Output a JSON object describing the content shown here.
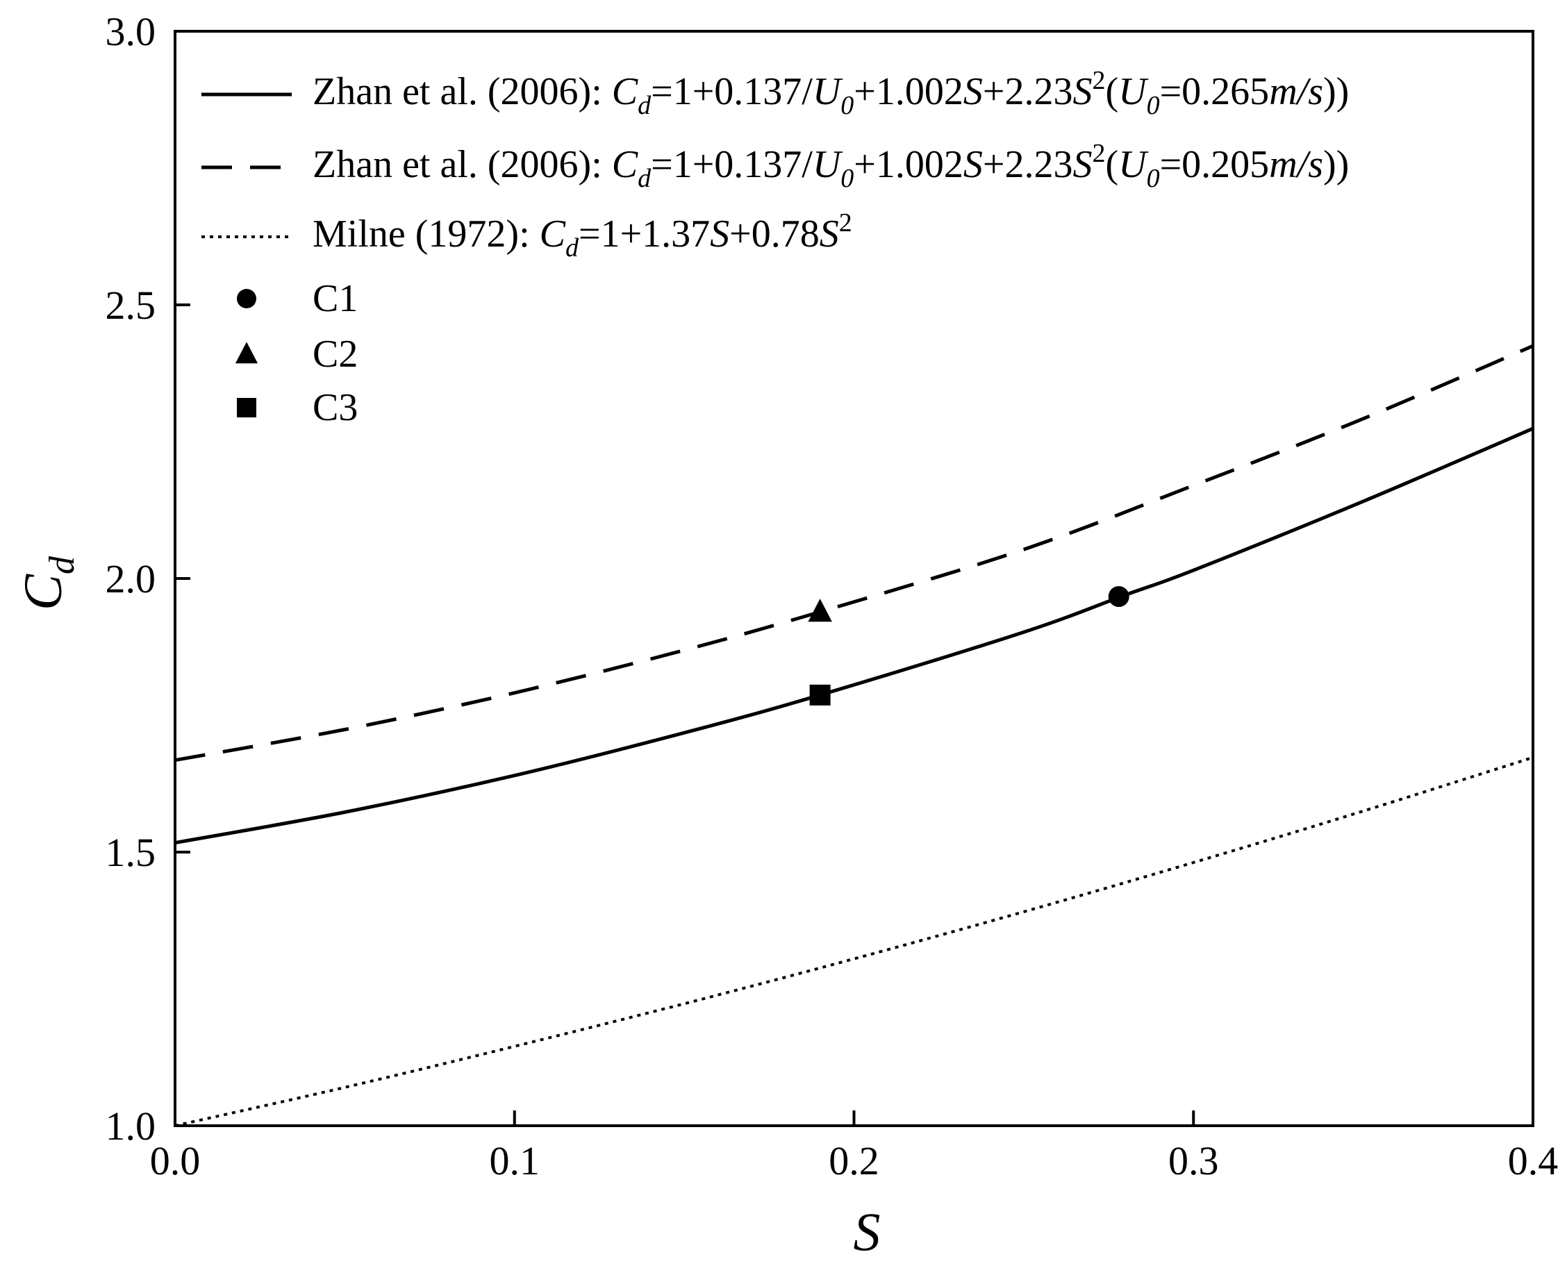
{
  "chart_data": {
    "type": "line",
    "title": "",
    "xlabel": "S",
    "ylabel": {
      "main": "C",
      "sub": "d"
    },
    "xlim": [
      0.0,
      0.4
    ],
    "ylim": [
      1.0,
      3.0
    ],
    "xticks": [
      "0.0",
      "0.1",
      "0.2",
      "0.3",
      "0.4"
    ],
    "yticks": [
      "1.0",
      "1.5",
      "2.0",
      "2.5",
      "3.0"
    ],
    "grid": false,
    "legend_position": "top-left",
    "series": [
      {
        "style": "solid",
        "legend": {
          "prefix": "Zhan et al. (2006): ",
          "formula": [
            {
              "t": "C",
              "i": true
            },
            {
              "t": "d",
              "i": true,
              "sub": true
            },
            {
              "t": "=1+0.137/"
            },
            {
              "t": "U",
              "i": true
            },
            {
              "t": "0",
              "i": true,
              "sub": true
            },
            {
              "t": "+1.002"
            },
            {
              "t": "S",
              "i": true
            },
            {
              "t": "+2.23"
            },
            {
              "t": "S",
              "i": true
            },
            {
              "t": "2",
              "sup": true
            },
            {
              "t": "("
            },
            {
              "t": "U",
              "i": true
            },
            {
              "t": "0",
              "i": true,
              "sub": true
            },
            {
              "t": "=0.265"
            },
            {
              "t": "m/s",
              "i": true
            },
            {
              "t": "))"
            }
          ]
        },
        "x": [
          0.0,
          0.05,
          0.1,
          0.15,
          0.19,
          0.25,
          0.28,
          0.3,
          0.35,
          0.4
        ],
        "y": [
          1.517,
          1.573,
          1.64,
          1.718,
          1.787,
          1.902,
          1.97,
          2.015,
          2.141,
          2.274
        ]
      },
      {
        "style": "dashed",
        "legend": {
          "prefix": "Zhan et al. (2006): ",
          "formula": [
            {
              "t": "C",
              "i": true
            },
            {
              "t": "d",
              "i": true,
              "sub": true
            },
            {
              "t": "=1+0.137/"
            },
            {
              "t": "U",
              "i": true
            },
            {
              "t": "0",
              "i": true,
              "sub": true
            },
            {
              "t": "+1.002"
            },
            {
              "t": "S",
              "i": true
            },
            {
              "t": "+2.23"
            },
            {
              "t": "S",
              "i": true
            },
            {
              "t": "2",
              "sup": true
            },
            {
              "t": "("
            },
            {
              "t": "U",
              "i": true
            },
            {
              "t": "0",
              "i": true,
              "sub": true
            },
            {
              "t": "=0.205"
            },
            {
              "t": "m/s",
              "i": true
            },
            {
              "t": "))"
            }
          ]
        },
        "x": [
          0.0,
          0.05,
          0.1,
          0.15,
          0.19,
          0.25,
          0.3,
          0.35,
          0.4
        ],
        "y": [
          1.668,
          1.724,
          1.791,
          1.869,
          1.939,
          2.053,
          2.17,
          2.292,
          2.425
        ]
      },
      {
        "style": "dotted",
        "legend": {
          "prefix": "Milne (1972): ",
          "formula": [
            {
              "t": "C",
              "i": true
            },
            {
              "t": "d",
              "i": true,
              "sub": true
            },
            {
              "t": "=1+1.37"
            },
            {
              "t": "S",
              "i": true
            },
            {
              "t": "+0.78"
            },
            {
              "t": "S",
              "i": true
            },
            {
              "t": "2",
              "sup": true
            }
          ]
        },
        "x": [
          0.0,
          0.05,
          0.1,
          0.15,
          0.2,
          0.25,
          0.3,
          0.35,
          0.4
        ],
        "y": [
          1.0,
          1.07,
          1.145,
          1.223,
          1.305,
          1.391,
          1.481,
          1.575,
          1.673
        ]
      }
    ],
    "points": [
      {
        "name": "C1",
        "marker": "circle",
        "x": 0.278,
        "y": 1.967
      },
      {
        "name": "C2",
        "marker": "triangle",
        "x": 0.19,
        "y": 1.939
      },
      {
        "name": "C3",
        "marker": "square",
        "x": 0.19,
        "y": 1.787
      }
    ]
  }
}
